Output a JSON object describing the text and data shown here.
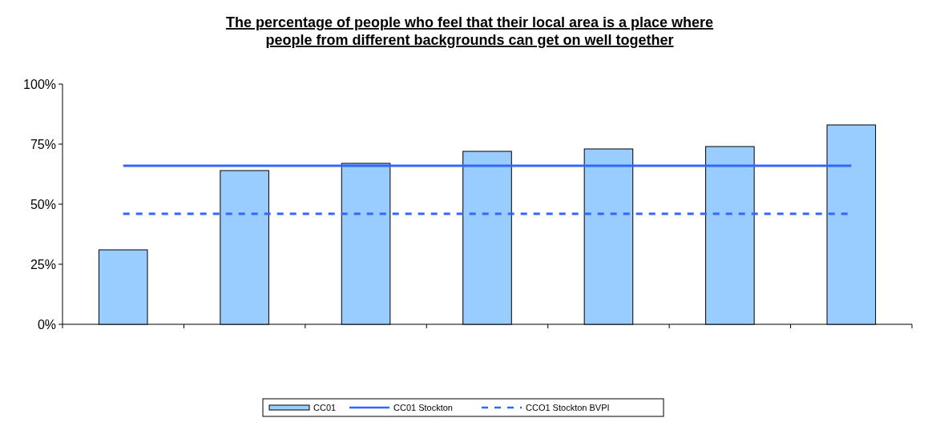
{
  "chart_data": {
    "type": "bar",
    "title": "The percentage of people who feel that their local area is a place where people from different backgrounds can get on well together",
    "categories": [
      null,
      null,
      null,
      null,
      null,
      null,
      null
    ],
    "series": [
      {
        "name": "CC01",
        "color": "#99ccff",
        "values": [
          31,
          64,
          67,
          72,
          73,
          74,
          83
        ]
      },
      {
        "name": "CC01 Stockton",
        "type": "line",
        "line_style": "solid",
        "color": "#3366ff",
        "values": [
          66,
          66,
          66,
          66,
          66,
          66,
          66
        ]
      },
      {
        "name": "CCO1 Stockton BVPI",
        "type": "line",
        "line_style": "dashed",
        "color": "#3366ff",
        "values": [
          46,
          46,
          46,
          46,
          46,
          46,
          46
        ]
      }
    ],
    "ylim": [
      0,
      100
    ],
    "yticks": [
      {
        "value": 0,
        "label": "0%"
      },
      {
        "value": 25,
        "label": "25%"
      },
      {
        "value": 50,
        "label": "50%"
      },
      {
        "value": 75,
        "label": "75%"
      },
      {
        "value": 100,
        "label": "100%"
      }
    ],
    "grid": false,
    "legend": "bottom"
  }
}
